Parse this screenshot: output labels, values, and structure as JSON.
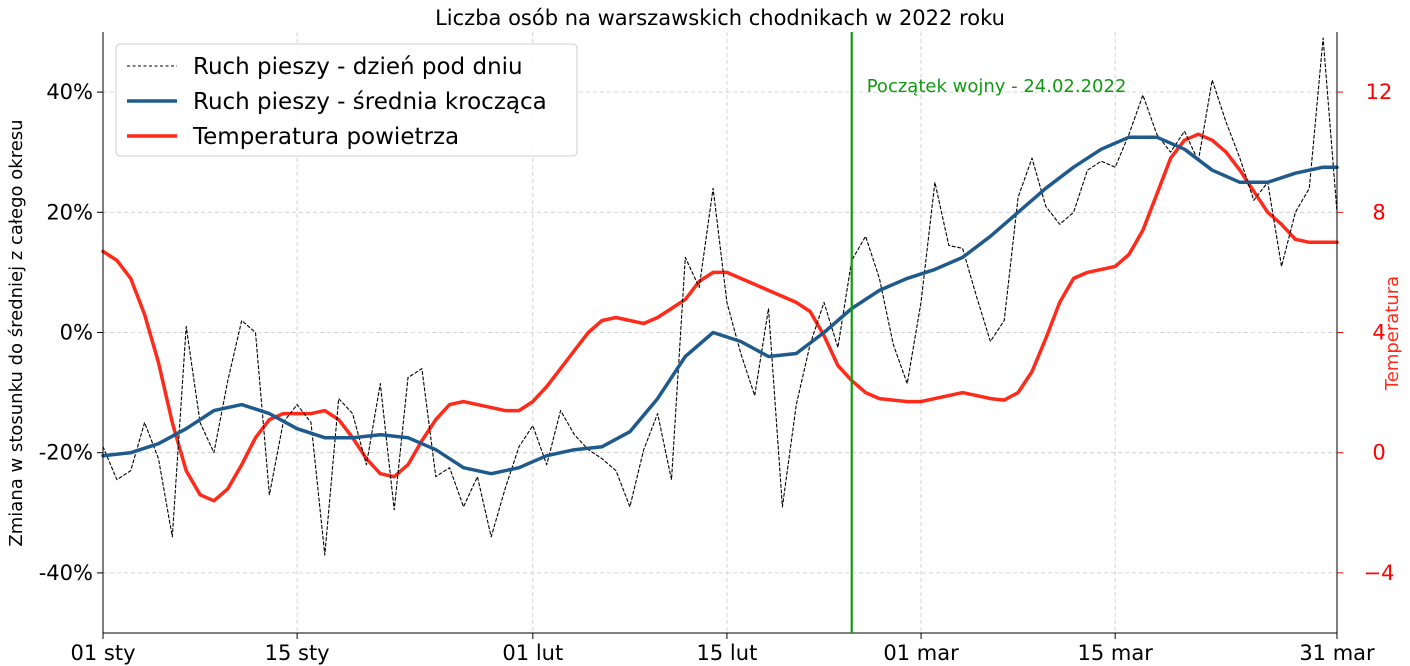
{
  "chart_data": {
    "type": "line",
    "title": "Liczba osób na warszawskich chodnikach w 2022 roku",
    "ylabel": "Zmiana w stosunku do średniej z całego okresu",
    "ylabel_right": "Temperatura",
    "xlim": [
      "2022-01-01",
      "2022-03-31"
    ],
    "ylim": [
      -50,
      50
    ],
    "ylim_right": [
      -6,
      14
    ],
    "x_ticks": [
      {
        "date": "2022-01-01",
        "label": "01 sty"
      },
      {
        "date": "2022-01-15",
        "label": "15 sty"
      },
      {
        "date": "2022-02-01",
        "label": "01 lut"
      },
      {
        "date": "2022-02-15",
        "label": "15 lut"
      },
      {
        "date": "2022-03-01",
        "label": "01 mar"
      },
      {
        "date": "2022-03-15",
        "label": "15 mar"
      },
      {
        "date": "2022-03-31",
        "label": "31 mar"
      }
    ],
    "y_ticks": [
      {
        "value": -40,
        "label": "-40%"
      },
      {
        "value": -20,
        "label": "-20%"
      },
      {
        "value": 0,
        "label": "0%"
      },
      {
        "value": 20,
        "label": "20%"
      },
      {
        "value": 40,
        "label": "40%"
      }
    ],
    "y_ticks_right": [
      {
        "value": -4,
        "label": "−4"
      },
      {
        "value": 0,
        "label": "0"
      },
      {
        "value": 4,
        "label": "4"
      },
      {
        "value": 8,
        "label": "8"
      },
      {
        "value": 12,
        "label": "12"
      }
    ],
    "grid": true,
    "legend_position": "top-left",
    "annotation": {
      "date": "2022-02-24",
      "text": "Początek wojny - 24.02.2022",
      "color": "#119911"
    },
    "series": [
      {
        "name": "Ruch pieszy - dzień pod dniu",
        "axis": "left",
        "color": "#000000",
        "style": "dashed",
        "x": [
          "2022-01-01",
          "2022-01-02",
          "2022-01-03",
          "2022-01-04",
          "2022-01-05",
          "2022-01-06",
          "2022-01-07",
          "2022-01-08",
          "2022-01-09",
          "2022-01-10",
          "2022-01-11",
          "2022-01-12",
          "2022-01-13",
          "2022-01-14",
          "2022-01-15",
          "2022-01-16",
          "2022-01-17",
          "2022-01-18",
          "2022-01-19",
          "2022-01-20",
          "2022-01-21",
          "2022-01-22",
          "2022-01-23",
          "2022-01-24",
          "2022-01-25",
          "2022-01-26",
          "2022-01-27",
          "2022-01-28",
          "2022-01-29",
          "2022-01-30",
          "2022-01-31",
          "2022-02-01",
          "2022-02-02",
          "2022-02-03",
          "2022-02-04",
          "2022-02-05",
          "2022-02-06",
          "2022-02-07",
          "2022-02-08",
          "2022-02-09",
          "2022-02-10",
          "2022-02-11",
          "2022-02-12",
          "2022-02-13",
          "2022-02-14",
          "2022-02-15",
          "2022-02-16",
          "2022-02-17",
          "2022-02-18",
          "2022-02-19",
          "2022-02-20",
          "2022-02-21",
          "2022-02-22",
          "2022-02-23",
          "2022-02-24",
          "2022-02-25",
          "2022-02-26",
          "2022-02-27",
          "2022-02-28",
          "2022-03-01",
          "2022-03-02",
          "2022-03-03",
          "2022-03-04",
          "2022-03-05",
          "2022-03-06",
          "2022-03-07",
          "2022-03-08",
          "2022-03-09",
          "2022-03-10",
          "2022-03-11",
          "2022-03-12",
          "2022-03-13",
          "2022-03-14",
          "2022-03-15",
          "2022-03-16",
          "2022-03-17",
          "2022-03-18",
          "2022-03-19",
          "2022-03-20",
          "2022-03-21",
          "2022-03-22",
          "2022-03-23",
          "2022-03-24",
          "2022-03-25",
          "2022-03-26",
          "2022-03-27",
          "2022-03-28",
          "2022-03-29",
          "2022-03-30",
          "2022-03-31"
        ],
        "values": [
          -19,
          -24.5,
          -23,
          -15,
          -21,
          -34,
          1,
          -15,
          -20,
          -8,
          2,
          0,
          -27,
          -15,
          -12,
          -15,
          -37,
          -11,
          -13.5,
          -22,
          -8.5,
          -29.5,
          -7.5,
          -6,
          -24,
          -22.5,
          -29,
          -24,
          -34,
          -26,
          -19,
          -15.5,
          -22,
          -13,
          -17,
          -19.5,
          -21,
          -23,
          -29,
          -19.5,
          -13.5,
          -24.5,
          12.5,
          7.5,
          24,
          5,
          -3.5,
          -10.5,
          4,
          -29,
          -12,
          -2,
          5,
          -2.5,
          12,
          16,
          9,
          -2,
          -8.5,
          5,
          25,
          14.5,
          14,
          6,
          -1.5,
          2,
          22.5,
          29,
          21,
          18,
          20,
          27,
          28.5,
          27.5,
          33,
          39.5,
          33,
          30,
          33.5,
          28.5,
          42,
          35,
          29,
          22,
          25,
          11,
          20,
          24,
          49,
          20
        ]
      },
      {
        "name": "Ruch pieszy - średnia krocząca",
        "axis": "left",
        "color": "#1f5a8c",
        "style": "solid",
        "x": [
          "2022-01-01",
          "2022-01-03",
          "2022-01-05",
          "2022-01-07",
          "2022-01-09",
          "2022-01-11",
          "2022-01-13",
          "2022-01-15",
          "2022-01-17",
          "2022-01-19",
          "2022-01-21",
          "2022-01-23",
          "2022-01-25",
          "2022-01-27",
          "2022-01-29",
          "2022-01-31",
          "2022-02-02",
          "2022-02-04",
          "2022-02-06",
          "2022-02-08",
          "2022-02-10",
          "2022-02-12",
          "2022-02-14",
          "2022-02-16",
          "2022-02-18",
          "2022-02-20",
          "2022-02-22",
          "2022-02-24",
          "2022-02-26",
          "2022-02-28",
          "2022-03-02",
          "2022-03-04",
          "2022-03-06",
          "2022-03-08",
          "2022-03-10",
          "2022-03-12",
          "2022-03-14",
          "2022-03-16",
          "2022-03-18",
          "2022-03-20",
          "2022-03-22",
          "2022-03-24",
          "2022-03-26",
          "2022-03-28",
          "2022-03-30",
          "2022-03-31"
        ],
        "values": [
          -20.5,
          -20,
          -18.5,
          -16,
          -13,
          -12,
          -13.5,
          -16,
          -17.5,
          -17.5,
          -17,
          -17.5,
          -19.5,
          -22.5,
          -23.5,
          -22.5,
          -20.5,
          -19.5,
          -19,
          -16.5,
          -11,
          -4,
          0,
          -1.5,
          -4,
          -3.5,
          0,
          4,
          7,
          9,
          10.5,
          12.5,
          16,
          20,
          24,
          27.5,
          30.5,
          32.5,
          32.5,
          30.5,
          27,
          25,
          25,
          26.5,
          27.5,
          27.5
        ]
      },
      {
        "name": "Temperatura powietrza",
        "axis": "right",
        "color": "#ff2a1a",
        "style": "solid",
        "x": [
          "2022-01-01",
          "2022-01-02",
          "2022-01-03",
          "2022-01-04",
          "2022-01-05",
          "2022-01-06",
          "2022-01-07",
          "2022-01-08",
          "2022-01-09",
          "2022-01-10",
          "2022-01-11",
          "2022-01-12",
          "2022-01-13",
          "2022-01-14",
          "2022-01-15",
          "2022-01-16",
          "2022-01-17",
          "2022-01-18",
          "2022-01-19",
          "2022-01-20",
          "2022-01-21",
          "2022-01-22",
          "2022-01-23",
          "2022-01-24",
          "2022-01-25",
          "2022-01-26",
          "2022-01-27",
          "2022-01-28",
          "2022-01-29",
          "2022-01-30",
          "2022-01-31",
          "2022-02-01",
          "2022-02-02",
          "2022-02-03",
          "2022-02-04",
          "2022-02-05",
          "2022-02-06",
          "2022-02-07",
          "2022-02-08",
          "2022-02-09",
          "2022-02-10",
          "2022-02-11",
          "2022-02-12",
          "2022-02-13",
          "2022-02-14",
          "2022-02-15",
          "2022-02-16",
          "2022-02-17",
          "2022-02-18",
          "2022-02-19",
          "2022-02-20",
          "2022-02-21",
          "2022-02-22",
          "2022-02-23",
          "2022-02-24",
          "2022-02-25",
          "2022-02-26",
          "2022-02-27",
          "2022-02-28",
          "2022-03-01",
          "2022-03-02",
          "2022-03-03",
          "2022-03-04",
          "2022-03-05",
          "2022-03-06",
          "2022-03-07",
          "2022-03-08",
          "2022-03-09",
          "2022-03-10",
          "2022-03-11",
          "2022-03-12",
          "2022-03-13",
          "2022-03-14",
          "2022-03-15",
          "2022-03-16",
          "2022-03-17",
          "2022-03-18",
          "2022-03-19",
          "2022-03-20",
          "2022-03-21",
          "2022-03-22",
          "2022-03-23",
          "2022-03-24",
          "2022-03-25",
          "2022-03-26",
          "2022-03-27",
          "2022-03-28",
          "2022-03-29",
          "2022-03-30",
          "2022-03-31"
        ],
        "values": [
          6.7,
          6.4,
          5.8,
          4.6,
          3,
          1,
          -0.6,
          -1.4,
          -1.6,
          -1.2,
          -0.4,
          0.5,
          1.1,
          1.3,
          1.3,
          1.3,
          1.4,
          1.1,
          0.5,
          -0.2,
          -0.7,
          -0.8,
          -0.4,
          0.4,
          1.1,
          1.6,
          1.7,
          1.6,
          1.5,
          1.4,
          1.4,
          1.7,
          2.2,
          2.8,
          3.4,
          4,
          4.4,
          4.5,
          4.4,
          4.3,
          4.5,
          4.8,
          5.1,
          5.7,
          6,
          6,
          5.8,
          5.6,
          5.4,
          5.2,
          5.0,
          4.7,
          3.9,
          2.9,
          2.4,
          2.0,
          1.8,
          1.75,
          1.7,
          1.7,
          1.8,
          1.9,
          2.0,
          1.9,
          1.8,
          1.75,
          2.0,
          2.7,
          3.8,
          5.0,
          5.8,
          6.0,
          6.1,
          6.2,
          6.6,
          7.4,
          8.6,
          9.8,
          10.4,
          10.6,
          10.4,
          10,
          9.4,
          8.7,
          8.0,
          7.6,
          7.1,
          7.0,
          7.0,
          7.0
        ]
      }
    ]
  }
}
